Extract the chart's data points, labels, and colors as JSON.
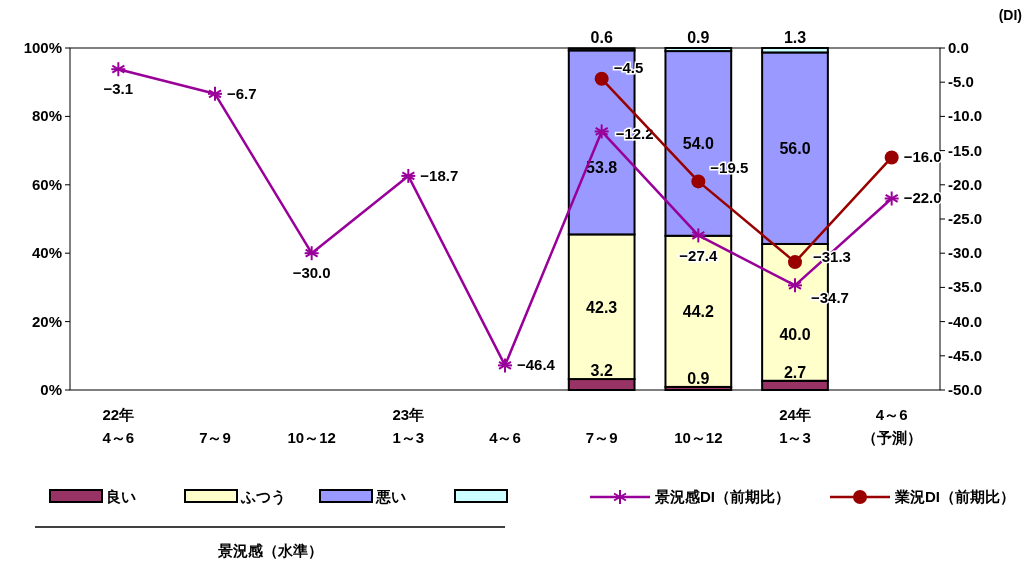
{
  "chart_data": {
    "type": "bar",
    "stacked": true,
    "categories": [
      "22年\n4～6",
      "7～9",
      "10～12",
      "23年\n1～3",
      "4～6",
      "7～9",
      "10～12",
      "24年\n1～3",
      "4～6\n（予測）"
    ],
    "series": [
      {
        "name": "良い",
        "color": "#993366",
        "values": [
          null,
          null,
          null,
          null,
          null,
          3.2,
          0.9,
          2.7,
          null
        ],
        "value_labels": [
          null,
          null,
          null,
          null,
          null,
          "3.2",
          "0.9",
          "2.7",
          null
        ]
      },
      {
        "name": "ふつう",
        "color": "#ffffcc",
        "values": [
          null,
          null,
          null,
          null,
          null,
          42.3,
          44.2,
          40.0,
          null
        ],
        "value_labels": [
          null,
          null,
          null,
          null,
          null,
          "42.3",
          "44.2",
          "40.0",
          null
        ]
      },
      {
        "name": "悪い",
        "color": "#9999ff",
        "values": [
          null,
          null,
          null,
          null,
          null,
          53.8,
          54.0,
          56.0,
          null
        ],
        "value_labels": [
          null,
          null,
          null,
          null,
          null,
          "53.8",
          "54.0",
          "56.0",
          null
        ]
      },
      {
        "color": "#ccffff",
        "values": [
          null,
          null,
          null,
          null,
          null,
          0.6,
          0.9,
          1.3,
          null
        ],
        "value_labels": [
          null,
          null,
          null,
          null,
          null,
          "0.6",
          "0.9",
          "1.3",
          null
        ]
      },
      {
        "name": "景況感DI（前期比）",
        "type": "line",
        "axis": "y2",
        "marker": "cross",
        "color": "#990099",
        "values": [
          -3.1,
          -6.7,
          -30.0,
          -18.7,
          -46.4,
          -12.2,
          -27.4,
          -34.7,
          -22.0
        ],
        "value_labels": [
          "−3.1",
          "−6.7",
          "−30.0",
          "−18.7",
          "−46.4",
          "−12.2",
          "−27.4",
          "−34.7",
          "−22.0"
        ]
      },
      {
        "name": "業況DI（前期比）",
        "type": "line",
        "axis": "y2",
        "marker": "circle",
        "color": "#990000",
        "values": [
          null,
          null,
          null,
          null,
          null,
          -4.5,
          -19.5,
          -31.3,
          -16.0
        ],
        "value_labels": [
          null,
          null,
          null,
          null,
          null,
          "−4.5",
          "−19.5",
          "−31.3",
          "−16.0"
        ]
      }
    ],
    "ylim": [
      0,
      100
    ],
    "yticks": [
      {
        "value": 0,
        "label": "0%"
      },
      {
        "value": 20,
        "label": "20%"
      },
      {
        "value": 40,
        "label": "40%"
      },
      {
        "value": 60,
        "label": "60%"
      },
      {
        "value": 80,
        "label": "80%"
      },
      {
        "value": 100,
        "label": "100%"
      }
    ],
    "y2label": "(DI)",
    "y2lim": [
      -50,
      0
    ],
    "y2ticks": [
      {
        "value": 0,
        "label": "0.0"
      },
      {
        "value": -5,
        "label": "-5.0"
      },
      {
        "value": -10,
        "label": "-10.0"
      },
      {
        "value": -15,
        "label": "-15.0"
      },
      {
        "value": -20,
        "label": "-20.0"
      },
      {
        "value": -25,
        "label": "-25.0"
      },
      {
        "value": -30,
        "label": "-30.0"
      },
      {
        "value": -35,
        "label": "-35.0"
      },
      {
        "value": -40,
        "label": "-40.0"
      },
      {
        "value": -45,
        "label": "-45.0"
      },
      {
        "value": -50,
        "label": "-50.0"
      }
    ],
    "legend": "bottom",
    "grid": false,
    "annotations": [
      "景況感（水準）"
    ]
  }
}
